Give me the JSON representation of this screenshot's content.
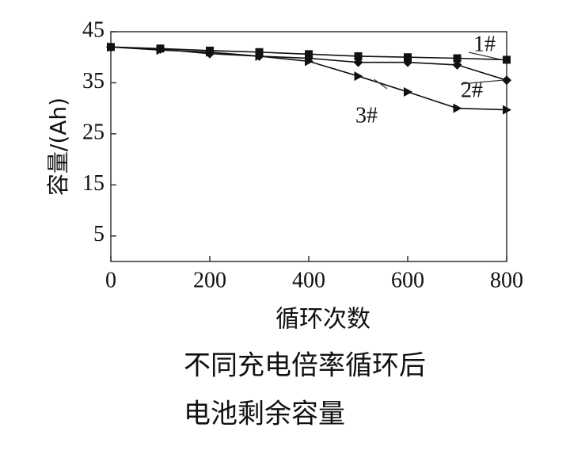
{
  "chart_data": {
    "type": "line",
    "x": [
      0,
      100,
      200,
      300,
      400,
      500,
      600,
      700,
      800
    ],
    "xlim": [
      0,
      800
    ],
    "xticks": [
      0,
      200,
      400,
      600,
      800
    ],
    "ylim": [
      0,
      45
    ],
    "yticks": [
      5,
      15,
      25,
      35,
      45
    ],
    "x_label": "循环次数",
    "y_label": "容量/(Ah)",
    "caption": [
      "不同充电倍率循环后",
      "电池剩余容量"
    ],
    "series": [
      {
        "name": "1#",
        "color": "#111111",
        "marker": "square",
        "values": [
          42,
          41.7,
          41.3,
          41,
          40.6,
          40.2,
          40,
          39.8,
          39.5
        ]
      },
      {
        "name": "2#",
        "color": "#111111",
        "marker": "diamond",
        "values": [
          42,
          41.6,
          40.7,
          40.2,
          39.8,
          39,
          39,
          38.5,
          35.5
        ]
      },
      {
        "name": "3#",
        "color": "#111111",
        "marker": "triangle",
        "values": [
          42,
          41.4,
          41,
          40.2,
          39.2,
          36.3,
          33.2,
          30,
          29.7
        ]
      }
    ]
  }
}
